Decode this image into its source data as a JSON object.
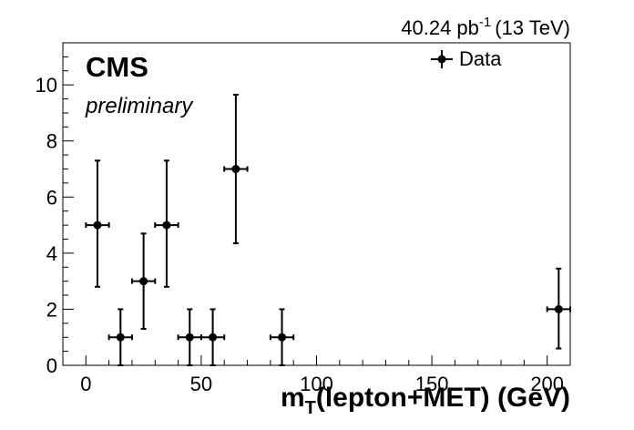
{
  "chart_data": {
    "type": "scatter",
    "header": {
      "lumi_value": "40.24 pb",
      "lumi_exponent": "-1",
      "energy": "(13 TeV)"
    },
    "experiment_label": "CMS",
    "experiment_sublabel": "preliminary",
    "xlabel": {
      "main": "m",
      "subscript": "T",
      "rest": "(lepton+MET) (GeV)"
    },
    "ylabel": "",
    "xlim": [
      -10,
      210
    ],
    "ylim": [
      0,
      11.5
    ],
    "x_ticks": [
      0,
      50,
      100,
      150,
      200
    ],
    "y_ticks": [
      0,
      2,
      4,
      6,
      8,
      10
    ],
    "grid": false,
    "legend": {
      "position": "top-right",
      "entries": [
        "Data"
      ]
    },
    "series": [
      {
        "name": "Data",
        "points": [
          {
            "x": 5,
            "y": 5,
            "xerr": 5,
            "yerr_low": 2.2,
            "yerr_high": 2.3
          },
          {
            "x": 15,
            "y": 1,
            "xerr": 5,
            "yerr_low": 1.0,
            "yerr_high": 1.0
          },
          {
            "x": 25,
            "y": 3,
            "xerr": 5,
            "yerr_low": 1.7,
            "yerr_high": 1.7
          },
          {
            "x": 35,
            "y": 5,
            "xerr": 5,
            "yerr_low": 2.2,
            "yerr_high": 2.3
          },
          {
            "x": 45,
            "y": 1,
            "xerr": 5,
            "yerr_low": 1.0,
            "yerr_high": 1.0
          },
          {
            "x": 55,
            "y": 1,
            "xerr": 5,
            "yerr_low": 1.0,
            "yerr_high": 1.0
          },
          {
            "x": 65,
            "y": 7,
            "xerr": 5,
            "yerr_low": 2.65,
            "yerr_high": 2.65
          },
          {
            "x": 85,
            "y": 1,
            "xerr": 5,
            "yerr_low": 1.0,
            "yerr_high": 1.0
          },
          {
            "x": 205,
            "y": 2,
            "xerr": 5,
            "yerr_low": 1.4,
            "yerr_high": 1.45
          }
        ]
      }
    ]
  }
}
